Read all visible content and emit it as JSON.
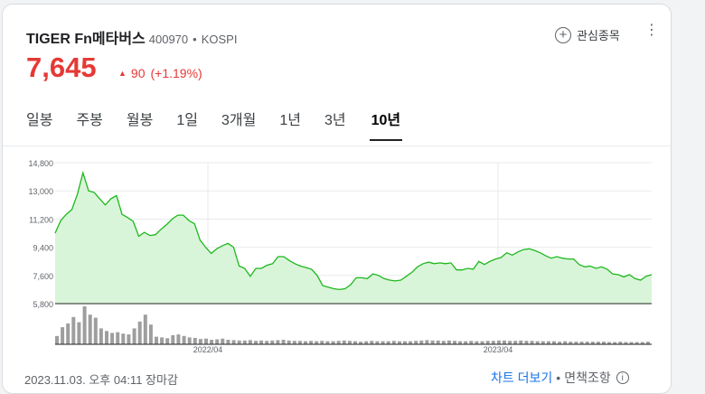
{
  "stock": {
    "name": "TIGER Fn메타버스",
    "code": "400970",
    "separator": "•",
    "market": "KOSPI",
    "price": "7,645",
    "change_arrow": "▲",
    "change": "90",
    "change_pct": "(+1.19%)",
    "favorite_label": "관심종목",
    "colors": {
      "up": "#e53935",
      "line": "#1db81d",
      "fill": "#d9f5d9"
    }
  },
  "tabs": [
    {
      "label": "일봉",
      "active": false
    },
    {
      "label": "주봉",
      "active": false
    },
    {
      "label": "월봉",
      "active": false
    },
    {
      "label": "1일",
      "active": false
    },
    {
      "label": "3개월",
      "active": false
    },
    {
      "label": "1년",
      "active": false
    },
    {
      "label": "3년",
      "active": false
    },
    {
      "label": "10년",
      "active": true
    }
  ],
  "chart_data": {
    "type": "area",
    "x_range": [
      "2021-10",
      "2023-11"
    ],
    "x_ticks": [
      "2022/04",
      "2023/04"
    ],
    "y_ticks": [
      "14,800",
      "13,000",
      "11,200",
      "9,400",
      "7,600",
      "5,800"
    ],
    "ylim": [
      5800,
      14800
    ],
    "grid": true,
    "price_series": [
      10300,
      11100,
      11500,
      11800,
      12800,
      14150,
      13000,
      12900,
      12500,
      12100,
      12500,
      12700,
      11500,
      11300,
      11050,
      10100,
      10350,
      10150,
      10200,
      10550,
      10850,
      11200,
      11450,
      11450,
      11100,
      10900,
      9850,
      9400,
      9000,
      9300,
      9500,
      9650,
      9400,
      8200,
      8050,
      7550,
      8050,
      8050,
      8250,
      8350,
      8800,
      8800,
      8550,
      8350,
      8200,
      8100,
      8000,
      7600,
      6950,
      6850,
      6750,
      6700,
      6750,
      7000,
      7450,
      7450,
      7400,
      7700,
      7600,
      7400,
      7300,
      7250,
      7300,
      7550,
      7800,
      8150,
      8350,
      8450,
      8350,
      8400,
      8350,
      8400,
      7950,
      7950,
      8050,
      8000,
      8500,
      8300,
      8500,
      8650,
      8750,
      9050,
      8900,
      9100,
      9250,
      9300,
      9200,
      9050,
      8850,
      8700,
      8800,
      8700,
      8650,
      8650,
      8300,
      8150,
      8200,
      8050,
      8150,
      8000,
      7700,
      7650,
      7500,
      7650,
      7400,
      7300,
      7550,
      7645
    ],
    "volume_series": [
      0.22,
      0.45,
      0.55,
      0.72,
      0.58,
      1.0,
      0.78,
      0.7,
      0.42,
      0.35,
      0.3,
      0.32,
      0.28,
      0.26,
      0.42,
      0.6,
      0.78,
      0.52,
      0.2,
      0.18,
      0.16,
      0.24,
      0.26,
      0.22,
      0.18,
      0.17,
      0.14,
      0.15,
      0.12,
      0.13,
      0.15,
      0.12,
      0.11,
      0.1,
      0.1,
      0.11,
      0.09,
      0.1,
      0.09,
      0.1,
      0.11,
      0.12,
      0.1,
      0.09,
      0.09,
      0.08,
      0.09,
      0.08,
      0.09,
      0.08,
      0.08,
      0.09,
      0.1,
      0.09,
      0.08,
      0.07,
      0.08,
      0.09,
      0.08,
      0.08,
      0.08,
      0.09,
      0.08,
      0.08,
      0.08,
      0.09,
      0.1,
      0.11,
      0.1,
      0.1,
      0.09,
      0.1,
      0.09,
      0.08,
      0.08,
      0.09,
      0.08,
      0.08,
      0.09,
      0.09,
      0.1,
      0.1,
      0.09,
      0.09,
      0.1,
      0.09,
      0.09,
      0.08,
      0.08,
      0.08,
      0.08,
      0.07,
      0.08,
      0.07,
      0.07,
      0.07,
      0.07,
      0.07,
      0.07,
      0.07,
      0.06,
      0.06,
      0.07,
      0.06,
      0.06,
      0.06,
      0.06,
      0.07
    ]
  },
  "footer": {
    "timestamp": "2023.11.03. 오후 04:11 장마감",
    "chart_link": "차트 더보기",
    "dot": "•",
    "disclaimer": "면책조항",
    "info_icon": "i"
  }
}
